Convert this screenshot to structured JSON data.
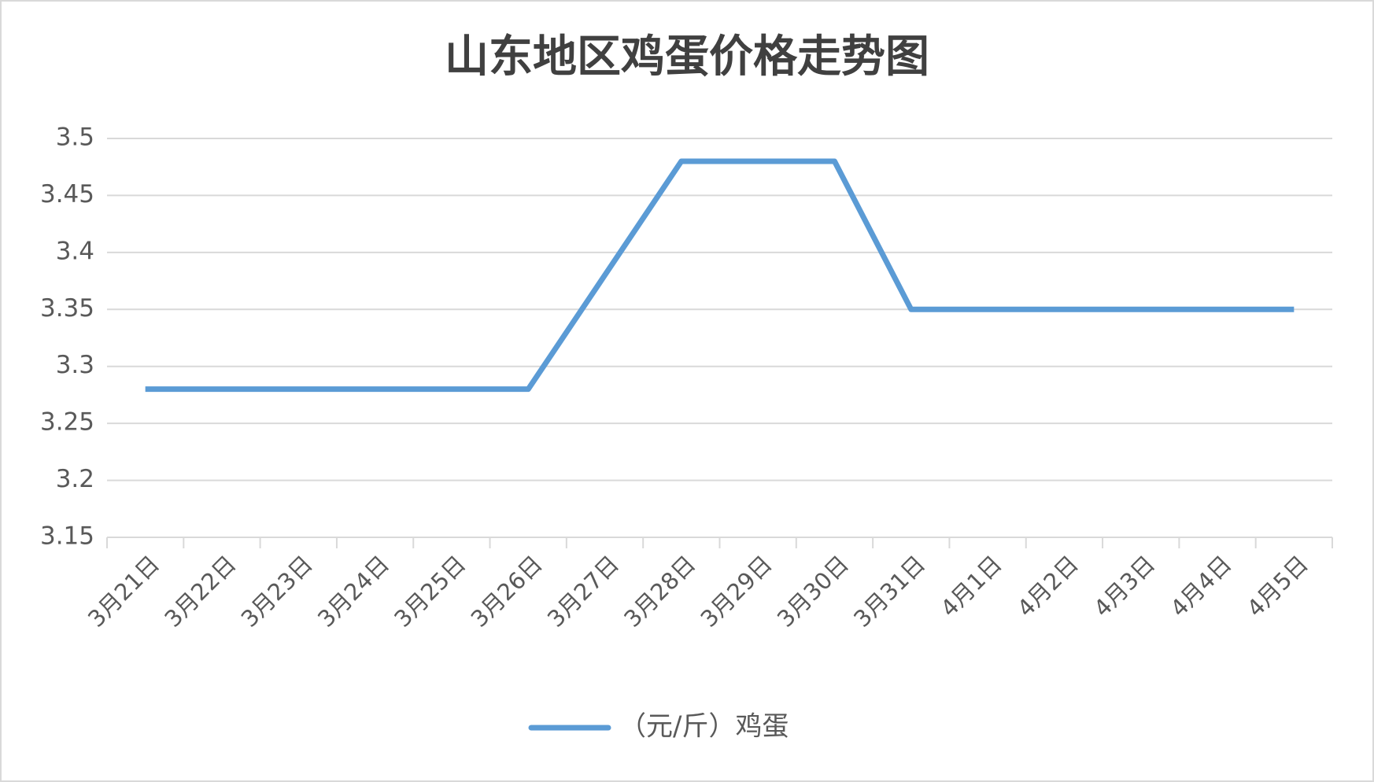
{
  "chart_data": {
    "type": "line",
    "title": "山东地区鸡蛋价格走势图",
    "categories": [
      "3月21日",
      "3月22日",
      "3月23日",
      "3月24日",
      "3月25日",
      "3月26日",
      "3月27日",
      "3月28日",
      "3月29日",
      "3月30日",
      "3月31日",
      "4月1日",
      "4月2日",
      "4月3日",
      "4月4日",
      "4月5日"
    ],
    "series": [
      {
        "name": "（元/斤）鸡蛋",
        "color": "#5b9bd5",
        "values": [
          3.28,
          3.28,
          3.28,
          3.28,
          3.28,
          3.28,
          3.38,
          3.48,
          3.48,
          3.48,
          3.35,
          3.35,
          3.35,
          3.35,
          3.35,
          3.35
        ]
      }
    ],
    "ylim": [
      3.15,
      3.5
    ],
    "yticks": [
      3.15,
      3.2,
      3.25,
      3.3,
      3.35,
      3.4,
      3.45,
      3.5
    ],
    "grid": true,
    "legend": "bottom"
  }
}
